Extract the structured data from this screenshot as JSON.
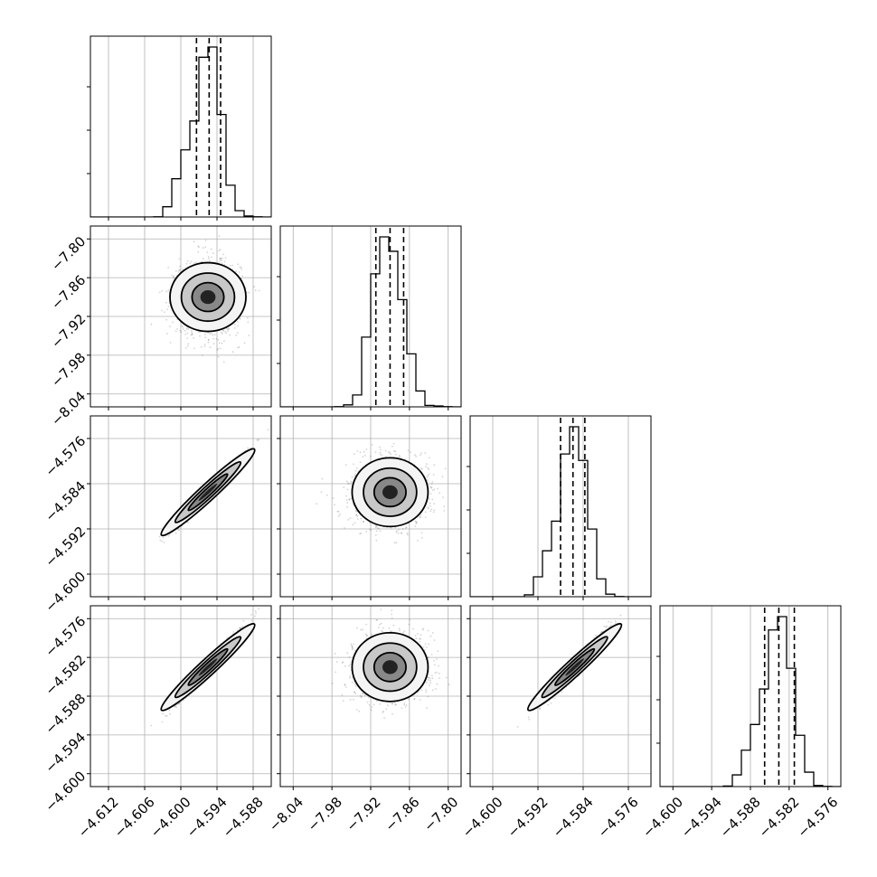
{
  "chart_data": {
    "type": "corner",
    "grid": true,
    "variables": [
      {
        "ticks": [
          "−4.612",
          "−4.606",
          "−4.600",
          "−4.594",
          "−4.588"
        ],
        "range": [
          -4.615,
          -4.585
        ],
        "center": -4.5955,
        "sigma": 0.002,
        "skew": -0.0012
      },
      {
        "ticks": [
          "−8.04",
          "−7.98",
          "−7.92",
          "−7.86",
          "−7.80"
        ],
        "range": [
          -8.06,
          -7.78
        ],
        "center": -7.89,
        "sigma": 0.022,
        "skew": 0.0
      },
      {
        "ticks": [
          "−4.600",
          "−4.592",
          "−4.584",
          "−4.576"
        ],
        "range": [
          -4.604,
          -4.572
        ],
        "center": -4.5855,
        "sigma": 0.0022,
        "skew": -0.0012
      },
      {
        "ticks": [
          "−4.600",
          "−4.594",
          "−4.588",
          "−4.582",
          "−4.576"
        ],
        "range": [
          -4.602,
          -4.574
        ],
        "center": -4.5835,
        "sigma": 0.002,
        "skew": -0.0012
      }
    ],
    "quantile_lines": [
      [
        -4.5974,
        -4.5953,
        -4.5934
      ],
      [
        -7.912,
        -7.89,
        -7.869
      ],
      [
        -4.588,
        -4.5858,
        -4.5837
      ],
      [
        -4.5858,
        -4.5836,
        -4.5812
      ]
    ],
    "correlations": [
      [
        1,
        0,
        0.98,
        0.98
      ],
      [
        0,
        1,
        0,
        0
      ],
      [
        0.98,
        0,
        1,
        0.97
      ],
      [
        0.98,
        0,
        0.97,
        1
      ]
    ]
  }
}
